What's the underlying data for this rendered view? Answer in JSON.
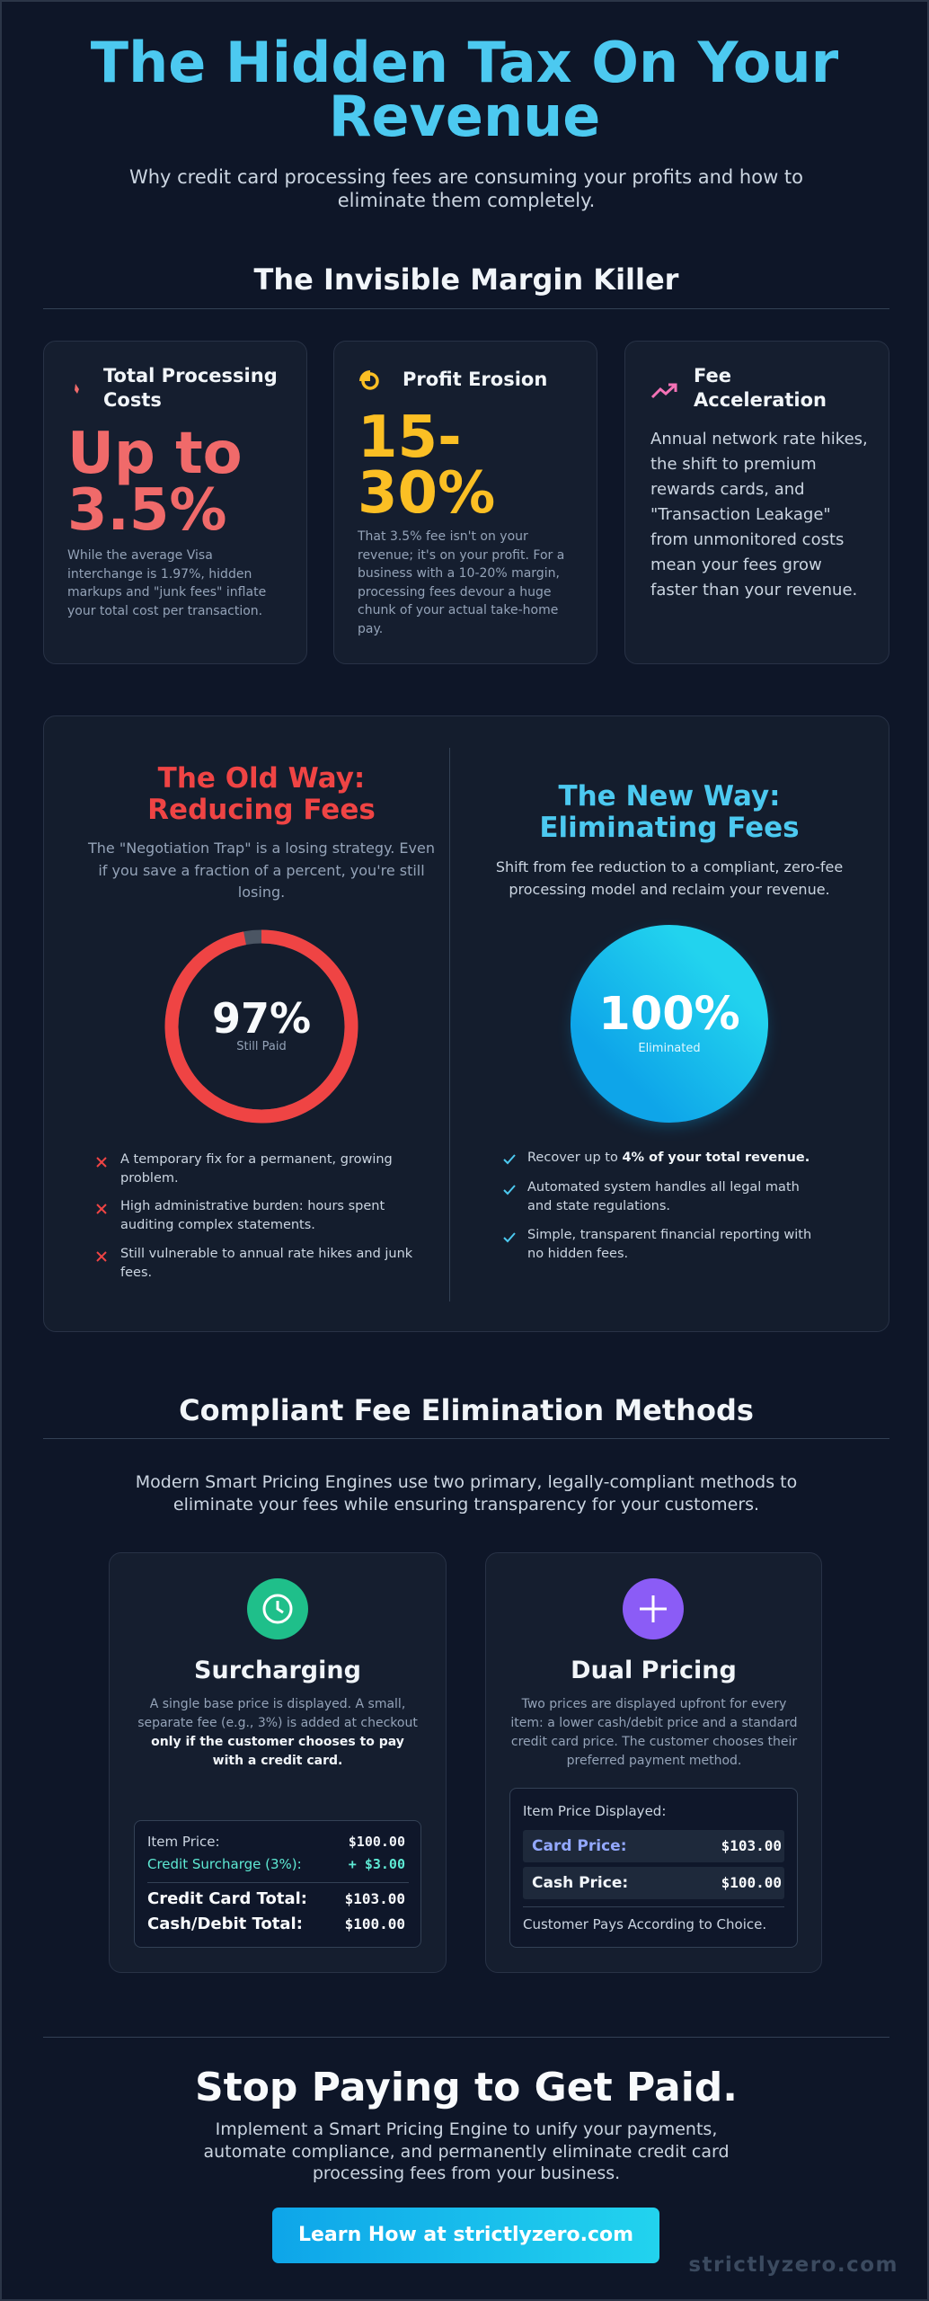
{
  "header": {
    "title": "The Hidden Tax On Your Revenue",
    "subtitle": "Why credit card processing fees are consuming your profits and how to eliminate them completely."
  },
  "section1": {
    "heading": "The Invisible Margin Killer",
    "cards": [
      {
        "title": "Total Processing Costs",
        "stat": "Up to 3.5%",
        "text": "While the average Visa interchange is 1.97%, hidden markups and \"junk fees\" inflate your total cost per transaction."
      },
      {
        "title": "Profit Erosion",
        "stat": "15-30%",
        "text": "That 3.5% fee isn't on your revenue; it's on your profit. For a business with a 10-20% margin, processing fees devour a huge chunk of your actual take-home pay."
      },
      {
        "title": "Fee Acceleration",
        "text": "Annual network rate hikes, the shift to premium rewards cards, and \"Transaction Leakage\" from unmonitored costs mean your fees grow faster than your revenue."
      }
    ]
  },
  "comparison": {
    "old": {
      "title": "The Old Way: Reducing Fees",
      "text": "The \"Negotiation Trap\" is a losing strategy. Even if you save a fraction of a percent, you're still losing.",
      "gauge": {
        "value": 97,
        "label": "97%",
        "caption": "Still Paid"
      },
      "points": [
        "A temporary fix for a permanent, growing problem.",
        "High administrative burden: hours spent auditing complex statements.",
        "Still vulnerable to annual rate hikes and junk fees."
      ]
    },
    "new": {
      "title": "The New Way: Eliminating Fees",
      "text": "Shift from fee reduction to a compliant, zero-fee processing model and reclaim your revenue.",
      "gauge": {
        "value": 100,
        "label": "100%",
        "caption": "Eliminated"
      },
      "points": [
        {
          "text": "Recover up to ",
          "bold": "4% of your total revenue."
        },
        {
          "text": "Automated system handles all legal math and state regulations."
        },
        {
          "text": "Simple, transparent financial reporting with no hidden fees."
        }
      ]
    }
  },
  "section2": {
    "heading": "Compliant Fee Elimination Methods",
    "intro": "Modern Smart Pricing Engines use two primary, legally-compliant methods to eliminate your fees while ensuring transparency for your customers.",
    "surcharging": {
      "title": "Surcharging",
      "text": "A single base price is displayed. A small, separate fee (e.g., 3%) is added at checkout ",
      "bold": "only if the customer chooses to pay with a credit card.",
      "rows": [
        [
          "Item Price:",
          "$100.00"
        ],
        [
          "Credit Surcharge (3%):",
          "+ $3.00"
        ],
        [
          "Credit Card Total:",
          "$103.00"
        ],
        [
          "Cash/Debit Total:",
          "$100.00"
        ]
      ]
    },
    "dual": {
      "title": "Dual Pricing",
      "text": "Two prices are displayed upfront for every item: a lower cash/debit price and a standard credit card price. The customer chooses their preferred payment method.",
      "label": "Item Price Displayed:",
      "rows": [
        [
          "Card Price:",
          "$103.00"
        ],
        [
          "Cash Price:",
          "$100.00"
        ]
      ],
      "footer": "Customer Pays According to Choice."
    }
  },
  "cta": {
    "title": "Stop Paying to Get Paid.",
    "text": "Implement a Smart Pricing Engine to unify your payments, automate compliance, and permanently eliminate credit card processing fees from your business.",
    "button": "Learn How at strictlyzero.com",
    "watermark": "strictlyzero.com"
  }
}
